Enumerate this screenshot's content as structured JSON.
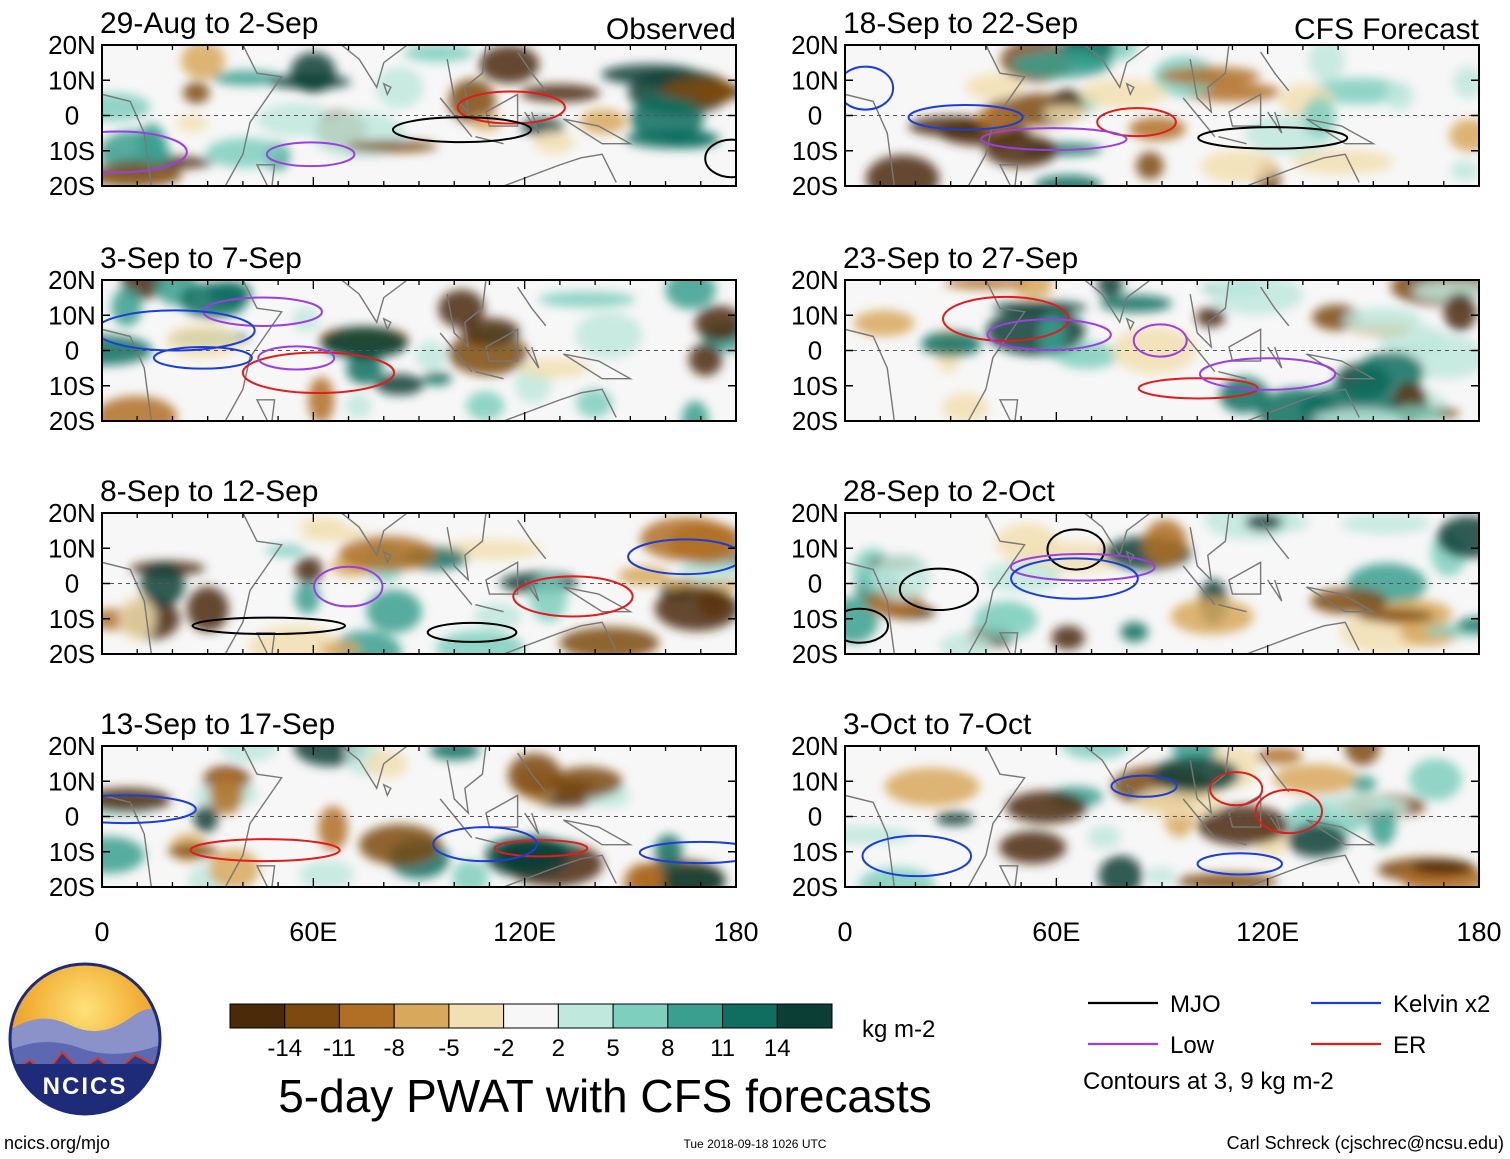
{
  "chart_data": {
    "type": "heatmap",
    "title": "5-day PWAT with CFS forecasts",
    "variable": "Precipitable water anomaly (PWAT)",
    "colorbar": {
      "unit_label": "kg m-2",
      "ticks": [
        "-14",
        "-11",
        "-8",
        "-5",
        "-2",
        "2",
        "5",
        "8",
        "11",
        "14"
      ],
      "colors": [
        "#4a2a08",
        "#7c4a10",
        "#b06f24",
        "#d8a85c",
        "#f2dfb2",
        "#f7f7f7",
        "#c0e8dd",
        "#7fcfbe",
        "#3a9f8e",
        "#0f6e5f",
        "#0b3f36"
      ]
    },
    "latitude_ticks": [
      "20N",
      "10N",
      "0",
      "10S",
      "20S"
    ],
    "longitude_ticks": [
      "0",
      "60E",
      "120E",
      "180"
    ],
    "lat_range": [
      -20,
      20
    ],
    "lon_range": [
      0,
      180
    ],
    "columns": [
      {
        "label": "Observed",
        "panels": [
          {
            "title": "29-Aug to 2-Sep"
          },
          {
            "title": "3-Sep to 7-Sep"
          },
          {
            "title": "8-Sep to 12-Sep"
          },
          {
            "title": "13-Sep to 17-Sep"
          }
        ]
      },
      {
        "label": "CFS Forecast",
        "panels": [
          {
            "title": "18-Sep to 22-Sep"
          },
          {
            "title": "23-Sep to 27-Sep"
          },
          {
            "title": "28-Sep to 2-Oct"
          },
          {
            "title": "3-Oct to 7-Oct"
          }
        ]
      }
    ],
    "legend": {
      "items": [
        {
          "label": "MJO",
          "color": "#000000"
        },
        {
          "label": "Kelvin x2",
          "color": "#1a3fd6"
        },
        {
          "label": "Low",
          "color": "#9b3fe0"
        },
        {
          "label": "ER",
          "color": "#e21b1b"
        }
      ],
      "note": "Contours at 3, 9 kg m-2"
    }
  },
  "logo": {
    "text": "NCICS"
  },
  "footer": {
    "url": "ncics.org/mjo",
    "timestamp": "Tue 2018-09-18 1026 UTC",
    "credit": "Carl Schreck (cjschrec@ncsu.edu)"
  }
}
